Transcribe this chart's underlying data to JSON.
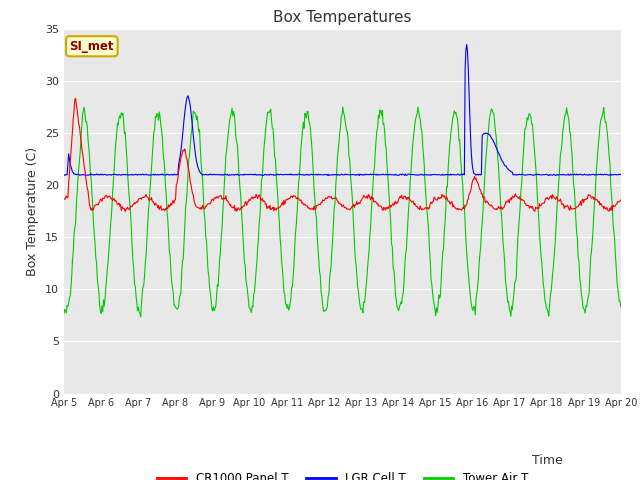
{
  "title": "Box Temperatures",
  "xlabel": "Time",
  "ylabel": "Box Temperature (C)",
  "ylim": [
    0,
    35
  ],
  "yticks": [
    0,
    5,
    10,
    15,
    20,
    25,
    30,
    35
  ],
  "x_labels": [
    "Apr 5",
    "Apr 6",
    "Apr 7",
    "Apr 8",
    "Apr 9",
    "Apr 10",
    "Apr 11",
    "Apr 12",
    "Apr 13",
    "Apr 14",
    "Apr 15",
    "Apr 16",
    "Apr 17",
    "Apr 18",
    "Apr 19",
    "Apr 20"
  ],
  "bg_color": "#e8e8e8",
  "fig_bg": "#ffffff",
  "panel_color": "#ff0000",
  "lgr_color": "#0000ff",
  "tower_color": "#00cc00",
  "legend_labels": [
    "CR1000 Panel T",
    "LGR Cell T",
    "Tower Air T"
  ],
  "annotation_text": "SI_met",
  "annotation_bg": "#ffffcc",
  "annotation_border": "#ccaa00"
}
